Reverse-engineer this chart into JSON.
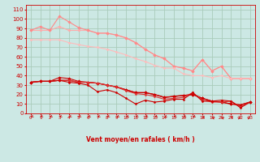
{
  "x": [
    0,
    1,
    2,
    3,
    4,
    5,
    6,
    7,
    8,
    9,
    10,
    11,
    12,
    13,
    14,
    15,
    16,
    17,
    18,
    19,
    20,
    21,
    22,
    23
  ],
  "bg_color": "#cce8e4",
  "grid_color": "#aaccbb",
  "xlabel": "Vent moyen/en rafales ( km/h )",
  "xlabel_color": "#cc0000",
  "tick_color": "#cc0000",
  "ylim": [
    0,
    115
  ],
  "yticks": [
    0,
    10,
    20,
    30,
    40,
    50,
    60,
    70,
    80,
    90,
    100,
    110
  ],
  "series": [
    {
      "y": [
        88,
        88,
        88,
        92,
        88,
        88,
        88,
        85,
        85,
        83,
        80,
        75,
        68,
        62,
        58,
        50,
        48,
        45,
        57,
        45,
        50,
        37,
        37,
        37
      ],
      "color": "#ffaaaa",
      "lw": 0.8,
      "marker": "D",
      "ms": 1.8
    },
    {
      "y": [
        88,
        92,
        88,
        103,
        97,
        91,
        88,
        85,
        85,
        83,
        80,
        75,
        68,
        62,
        58,
        50,
        48,
        45,
        57,
        45,
        50,
        37,
        37,
        37
      ],
      "color": "#ff8888",
      "lw": 0.8,
      "marker": "D",
      "ms": 1.8
    },
    {
      "y": [
        78,
        78,
        78,
        78,
        75,
        73,
        71,
        70,
        68,
        65,
        62,
        58,
        55,
        51,
        48,
        48,
        42,
        40,
        40,
        38,
        40,
        37,
        37,
        37
      ],
      "color": "#ffbbbb",
      "lw": 0.8,
      "marker": "D",
      "ms": 1.5
    },
    {
      "y": [
        33,
        34,
        34,
        35,
        35,
        33,
        33,
        32,
        30,
        28,
        25,
        22,
        22,
        20,
        17,
        18,
        19,
        20,
        16,
        13,
        12,
        10,
        9,
        12
      ],
      "color": "#cc0000",
      "lw": 0.9,
      "marker": "D",
      "ms": 1.8
    },
    {
      "y": [
        33,
        34,
        34,
        38,
        37,
        34,
        33,
        32,
        30,
        28,
        25,
        22,
        22,
        20,
        17,
        18,
        19,
        20,
        16,
        13,
        12,
        10,
        9,
        12
      ],
      "color": "#cc0000",
      "lw": 0.8,
      "marker": "D",
      "ms": 1.8
    },
    {
      "y": [
        33,
        34,
        34,
        35,
        35,
        33,
        33,
        32,
        30,
        28,
        24,
        21,
        20,
        18,
        15,
        16,
        17,
        22,
        14,
        12,
        12,
        13,
        7,
        12
      ],
      "color": "#dd3333",
      "lw": 0.8,
      "marker": "D",
      "ms": 1.5
    },
    {
      "y": [
        33,
        34,
        34,
        35,
        33,
        32,
        30,
        23,
        25,
        22,
        16,
        10,
        14,
        12,
        13,
        15,
        15,
        22,
        13,
        13,
        14,
        13,
        6,
        12
      ],
      "color": "#cc0000",
      "lw": 0.8,
      "marker": "D",
      "ms": 1.5
    }
  ],
  "arrow_angles": [
    225,
    225,
    225,
    225,
    225,
    225,
    225,
    225,
    225,
    225,
    225,
    225,
    225,
    225,
    225,
    225,
    225,
    225,
    270,
    315,
    315,
    270,
    45,
    45
  ]
}
